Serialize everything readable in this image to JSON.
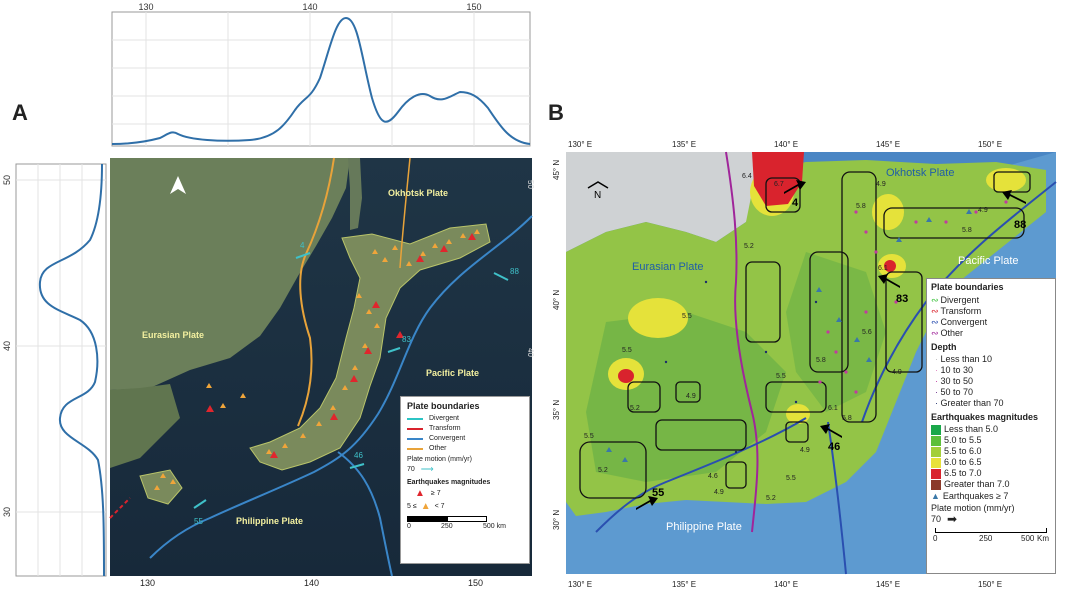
{
  "panel_a": {
    "letter": "A",
    "top_ticks": [
      "130",
      "140",
      "150"
    ],
    "bottom_ticks": [
      "130",
      "140",
      "150"
    ],
    "side_ticks": [
      "50",
      "40",
      "30"
    ],
    "map_right_ticks": [
      "50",
      "45",
      "40",
      "35",
      "30"
    ],
    "plates": {
      "okhotsk": "Okhotsk Plate",
      "eurasian": "Eurasian Plate",
      "pacific": "Pacific Plate",
      "philippine": "Philippine Plate"
    },
    "motion_labels": [
      "4",
      "88",
      "83",
      "46",
      "55"
    ],
    "legend": {
      "title": "Plate boundaries",
      "items": [
        {
          "label": "Divergent",
          "color": "#2cc4c4"
        },
        {
          "label": "Transform",
          "color": "#d9232d"
        },
        {
          "label": "Convergent",
          "color": "#3a86c8"
        },
        {
          "label": "Other",
          "color": "#e8a33a"
        }
      ],
      "motion_title": "Plate motion (mm/yr)",
      "motion_value": "70",
      "eq_title": "Earthquakes magnitudes",
      "eq_big": "≥ 7",
      "eq_small_left": "5 ≤",
      "eq_small_right": "< 7",
      "scale_zero": "0",
      "scale_mid": "250",
      "scale_end": "500 km"
    }
  },
  "panel_b": {
    "letter": "B",
    "top_ticks": [
      "130° E",
      "135° E",
      "140° E",
      "145° E",
      "150° E"
    ],
    "bottom_ticks": [
      "130° E",
      "135° E",
      "140° E",
      "145° E",
      "150° E"
    ],
    "lat_ticks": [
      "45° N",
      "40° N",
      "35° N",
      "30° N"
    ],
    "plates": {
      "okhotsk": "Okhotsk Plate",
      "eurasian": "Eurasian Plate",
      "pacific": "Pacific Plate",
      "philippine": "Philippine Plate"
    },
    "north": "N",
    "motion_labels": [
      "4",
      "88",
      "83",
      "46",
      "55"
    ],
    "value_labels": [
      "6.4",
      "6.7",
      "4.9",
      "5.2",
      "5.8",
      "4.9",
      "6.1",
      "5.8",
      "5.5",
      "5.5",
      "5.2",
      "5.6",
      "4.9",
      "5.8",
      "6.1",
      "4.9",
      "5.5",
      "4.6",
      "4.9",
      "5.2",
      "5.5",
      "5.2",
      "4.9",
      "5.5",
      "5.8"
    ],
    "legend": {
      "boundaries_title": "Plate boundaries",
      "boundaries": [
        {
          "label": "Divergent",
          "color": "#3cc23c"
        },
        {
          "label": "Transform",
          "color": "#d9232d"
        },
        {
          "label": "Convergent",
          "color": "#2a4fb0"
        },
        {
          "label": "Other",
          "color": "#a0259a"
        }
      ],
      "depth_title": "Depth",
      "depth": [
        "Less than 10",
        "10 to 30",
        "30 to 50",
        "50 to 70",
        "Greater than 70"
      ],
      "mag_title": "Earthquakes magnitudes",
      "mags": [
        {
          "label": "Less than 5.0",
          "color": "#1aa84a"
        },
        {
          "label": "5.0 to 5.5",
          "color": "#5cbf3a"
        },
        {
          "label": "5.5 to 6.0",
          "color": "#a3cf3a"
        },
        {
          "label": "6.0 to 6.5",
          "color": "#e8e13a"
        },
        {
          "label": "6.5 to 7.0",
          "color": "#d9232d"
        },
        {
          "label": "Greater than 7.0",
          "color": "#8b3a2a"
        }
      ],
      "eq7": "Earthquakes ≥ 7",
      "motion_title": "Plate motion (mm/yr)",
      "motion_value": "70",
      "scale_zero": "0",
      "scale_mid": "250",
      "scale_end": "500",
      "scale_unit": "Km"
    }
  }
}
